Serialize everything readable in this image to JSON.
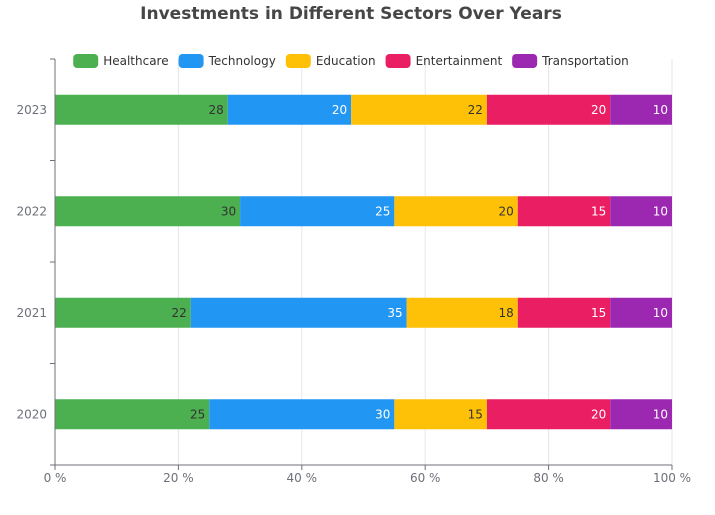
{
  "chart_data": {
    "type": "bar",
    "orientation": "horizontal",
    "stacked": true,
    "normalized": true,
    "title": "Investments in Different Sectors Over Years",
    "categories": [
      "2020",
      "2021",
      "2022",
      "2023"
    ],
    "series": [
      {
        "name": "Healthcare",
        "color": "#4caf50",
        "label_color": "#333333",
        "values": [
          25,
          22,
          30,
          28
        ]
      },
      {
        "name": "Technology",
        "color": "#2196f3",
        "label_color": "#ffffff",
        "values": [
          30,
          35,
          25,
          20
        ]
      },
      {
        "name": "Education",
        "color": "#ffc107",
        "label_color": "#333333",
        "values": [
          15,
          18,
          20,
          22
        ]
      },
      {
        "name": "Entertainment",
        "color": "#e91e63",
        "label_color": "#ffffff",
        "values": [
          20,
          15,
          15,
          20
        ]
      },
      {
        "name": "Transportation",
        "color": "#9c27b0",
        "label_color": "#ffffff",
        "values": [
          10,
          10,
          10,
          10
        ]
      }
    ],
    "xlim": [
      0,
      100
    ],
    "x_ticks": [
      "0 %",
      "20 %",
      "40 %",
      "60 %",
      "80 %",
      "100 %"
    ],
    "grid": true,
    "legend_position": "top"
  }
}
